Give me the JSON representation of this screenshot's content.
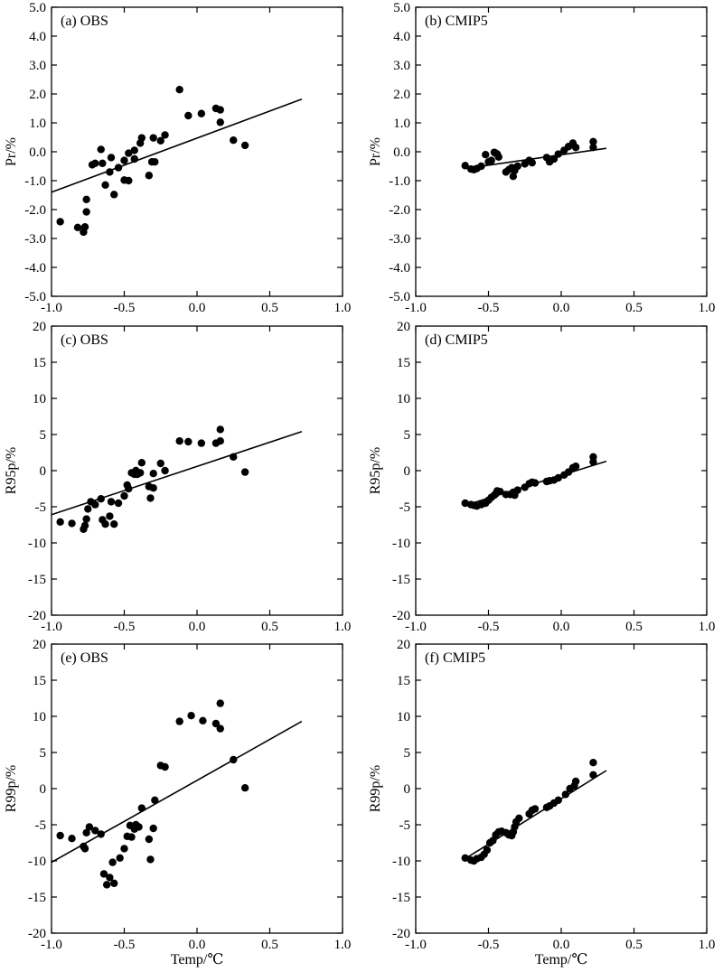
{
  "chart_data": [
    {
      "type": "scatter",
      "title": "(a) OBS",
      "xlabel": "",
      "ylabel": "Pr/%",
      "xlim": [
        -1.0,
        1.0
      ],
      "ylim": [
        -5.0,
        5.0
      ],
      "xticks": [
        "-1.0",
        "-0.5",
        "0.0",
        "0.5",
        "1.0"
      ],
      "yticks": [
        "-5.0",
        "-4.0",
        "-3.0",
        "-2.0",
        "-1.0",
        "0.0",
        "1.0",
        "2.0",
        "3.0",
        "4.0",
        "5.0"
      ],
      "grid": false,
      "points": [
        [
          -0.94,
          -2.42
        ],
        [
          -0.82,
          -2.62
        ],
        [
          -0.78,
          -2.78
        ],
        [
          -0.77,
          -2.6
        ],
        [
          -0.76,
          -2.08
        ],
        [
          -0.76,
          -1.65
        ],
        [
          -0.72,
          -0.45
        ],
        [
          -0.7,
          -0.4
        ],
        [
          -0.66,
          0.08
        ],
        [
          -0.65,
          -0.4
        ],
        [
          -0.63,
          -1.15
        ],
        [
          -0.6,
          -0.7
        ],
        [
          -0.59,
          -0.2
        ],
        [
          -0.57,
          -1.48
        ],
        [
          -0.54,
          -0.55
        ],
        [
          -0.5,
          -0.98
        ],
        [
          -0.5,
          -0.3
        ],
        [
          -0.47,
          -1.0
        ],
        [
          -0.47,
          -0.05
        ],
        [
          -0.43,
          0.05
        ],
        [
          -0.43,
          -0.25
        ],
        [
          -0.39,
          0.3
        ],
        [
          -0.38,
          0.48
        ],
        [
          -0.33,
          -0.82
        ],
        [
          -0.31,
          -0.35
        ],
        [
          -0.3,
          0.48
        ],
        [
          -0.29,
          -0.35
        ],
        [
          -0.25,
          0.38
        ],
        [
          -0.22,
          0.58
        ],
        [
          -0.12,
          2.15
        ],
        [
          -0.06,
          1.25
        ],
        [
          0.03,
          1.32
        ],
        [
          0.13,
          1.5
        ],
        [
          0.16,
          1.45
        ],
        [
          0.16,
          1.02
        ],
        [
          0.25,
          0.4
        ],
        [
          0.33,
          0.22
        ]
      ],
      "fit": [
        [
          -1.0,
          -1.4
        ],
        [
          0.72,
          1.82
        ]
      ]
    },
    {
      "type": "scatter",
      "title": "(b) CMIP5",
      "xlabel": "",
      "ylabel": "Pr/%",
      "xlim": [
        -1.0,
        1.0
      ],
      "ylim": [
        -5.0,
        5.0
      ],
      "xticks": [
        "-1.0",
        "-0.5",
        "0.0",
        "0.5",
        "1.0"
      ],
      "yticks": [
        "-5.0",
        "-4.0",
        "-3.0",
        "-2.0",
        "-1.0",
        "0.0",
        "1.0",
        "2.0",
        "3.0",
        "4.0",
        "5.0"
      ],
      "grid": false,
      "points": [
        [
          -0.66,
          -0.48
        ],
        [
          -0.62,
          -0.6
        ],
        [
          -0.6,
          -0.62
        ],
        [
          -0.58,
          -0.58
        ],
        [
          -0.55,
          -0.5
        ],
        [
          -0.52,
          -0.1
        ],
        [
          -0.5,
          -0.35
        ],
        [
          -0.48,
          -0.3
        ],
        [
          -0.46,
          -0.02
        ],
        [
          -0.45,
          -0.05
        ],
        [
          -0.44,
          -0.08
        ],
        [
          -0.43,
          -0.18
        ],
        [
          -0.38,
          -0.7
        ],
        [
          -0.36,
          -0.62
        ],
        [
          -0.34,
          -0.55
        ],
        [
          -0.33,
          -0.85
        ],
        [
          -0.32,
          -0.65
        ],
        [
          -0.3,
          -0.5
        ],
        [
          -0.25,
          -0.42
        ],
        [
          -0.22,
          -0.3
        ],
        [
          -0.2,
          -0.38
        ],
        [
          -0.1,
          -0.2
        ],
        [
          -0.08,
          -0.35
        ],
        [
          -0.05,
          -0.25
        ],
        [
          -0.02,
          -0.08
        ],
        [
          0.02,
          0.05
        ],
        [
          0.05,
          0.18
        ],
        [
          0.08,
          0.3
        ],
        [
          0.1,
          0.15
        ],
        [
          0.22,
          0.35
        ],
        [
          0.22,
          0.15
        ]
      ],
      "fit": [
        [
          -0.66,
          -0.58
        ],
        [
          0.31,
          0.12
        ]
      ]
    },
    {
      "type": "scatter",
      "title": "(c) OBS",
      "xlabel": "",
      "ylabel": "R95p/%",
      "xlim": [
        -1.0,
        1.0
      ],
      "ylim": [
        -20,
        20
      ],
      "xticks": [
        "-1.0",
        "-0.5",
        "0.0",
        "0.5",
        "1.0"
      ],
      "yticks": [
        "-20",
        "-15",
        "-10",
        "-5",
        "0",
        "5",
        "10",
        "15",
        "20"
      ],
      "grid": false,
      "points": [
        [
          -0.94,
          -7.1
        ],
        [
          -0.86,
          -7.3
        ],
        [
          -0.78,
          -8.1
        ],
        [
          -0.77,
          -7.6
        ],
        [
          -0.76,
          -6.7
        ],
        [
          -0.75,
          -5.3
        ],
        [
          -0.73,
          -4.3
        ],
        [
          -0.7,
          -4.7
        ],
        [
          -0.66,
          -3.9
        ],
        [
          -0.65,
          -6.8
        ],
        [
          -0.63,
          -7.4
        ],
        [
          -0.6,
          -6.3
        ],
        [
          -0.59,
          -4.3
        ],
        [
          -0.57,
          -7.4
        ],
        [
          -0.54,
          -4.5
        ],
        [
          -0.5,
          -3.5
        ],
        [
          -0.48,
          -2.0
        ],
        [
          -0.47,
          -2.5
        ],
        [
          -0.45,
          -0.3
        ],
        [
          -0.43,
          -0.5
        ],
        [
          -0.42,
          0.0
        ],
        [
          -0.41,
          -0.5
        ],
        [
          -0.39,
          -0.3
        ],
        [
          -0.38,
          1.1
        ],
        [
          -0.33,
          -2.2
        ],
        [
          -0.32,
          -3.8
        ],
        [
          -0.3,
          -2.4
        ],
        [
          -0.3,
          -0.4
        ],
        [
          -0.25,
          1.0
        ],
        [
          -0.22,
          0.0
        ],
        [
          -0.12,
          4.1
        ],
        [
          -0.06,
          4.0
        ],
        [
          0.03,
          3.8
        ],
        [
          0.13,
          3.8
        ],
        [
          0.16,
          5.7
        ],
        [
          0.16,
          4.1
        ],
        [
          0.25,
          1.9
        ],
        [
          0.33,
          -0.2
        ]
      ],
      "fit": [
        [
          -1.0,
          -6.1
        ],
        [
          0.72,
          5.4
        ]
      ]
    },
    {
      "type": "scatter",
      "title": "(d) CMIP5",
      "xlabel": "",
      "ylabel": "R95p/%",
      "xlim": [
        -1.0,
        1.0
      ],
      "ylim": [
        -20,
        20
      ],
      "xticks": [
        "-1.0",
        "-0.5",
        "0.0",
        "0.5",
        "1.0"
      ],
      "yticks": [
        "-20",
        "-15",
        "-10",
        "-5",
        "0",
        "5",
        "10",
        "15",
        "20"
      ],
      "grid": false,
      "points": [
        [
          -0.66,
          -4.5
        ],
        [
          -0.62,
          -4.7
        ],
        [
          -0.6,
          -4.8
        ],
        [
          -0.58,
          -4.9
        ],
        [
          -0.55,
          -4.7
        ],
        [
          -0.52,
          -4.5
        ],
        [
          -0.5,
          -4.1
        ],
        [
          -0.48,
          -3.7
        ],
        [
          -0.46,
          -3.4
        ],
        [
          -0.45,
          -3.2
        ],
        [
          -0.44,
          -2.8
        ],
        [
          -0.42,
          -2.9
        ],
        [
          -0.38,
          -3.3
        ],
        [
          -0.35,
          -3.3
        ],
        [
          -0.33,
          -3.0
        ],
        [
          -0.32,
          -3.4
        ],
        [
          -0.3,
          -2.7
        ],
        [
          -0.25,
          -2.3
        ],
        [
          -0.22,
          -1.8
        ],
        [
          -0.2,
          -1.6
        ],
        [
          -0.18,
          -1.7
        ],
        [
          -0.1,
          -1.5
        ],
        [
          -0.08,
          -1.4
        ],
        [
          -0.05,
          -1.3
        ],
        [
          -0.02,
          -1.0
        ],
        [
          0.02,
          -0.6
        ],
        [
          0.05,
          -0.2
        ],
        [
          0.08,
          0.4
        ],
        [
          0.1,
          0.6
        ],
        [
          0.22,
          1.9
        ],
        [
          0.22,
          1.2
        ]
      ],
      "fit": [
        [
          -0.66,
          -4.8
        ],
        [
          0.31,
          1.3
        ]
      ]
    },
    {
      "type": "scatter",
      "title": "(e) OBS",
      "xlabel": "Temp/℃",
      "ylabel": "R99p/%",
      "xlim": [
        -1.0,
        1.0
      ],
      "ylim": [
        -20,
        20
      ],
      "xticks": [
        "-1.0",
        "-0.5",
        "0.0",
        "0.5",
        "1.0"
      ],
      "yticks": [
        "-20",
        "-15",
        "-10",
        "-5",
        "0",
        "5",
        "10",
        "15",
        "20"
      ],
      "grid": false,
      "points": [
        [
          -0.94,
          -6.5
        ],
        [
          -0.86,
          -6.9
        ],
        [
          -0.78,
          -8.0
        ],
        [
          -0.77,
          -8.3
        ],
        [
          -0.76,
          -6.1
        ],
        [
          -0.74,
          -5.3
        ],
        [
          -0.7,
          -5.8
        ],
        [
          -0.66,
          -6.3
        ],
        [
          -0.64,
          -11.8
        ],
        [
          -0.62,
          -13.3
        ],
        [
          -0.6,
          -12.3
        ],
        [
          -0.58,
          -10.2
        ],
        [
          -0.57,
          -13.1
        ],
        [
          -0.53,
          -9.6
        ],
        [
          -0.5,
          -8.3
        ],
        [
          -0.48,
          -6.6
        ],
        [
          -0.46,
          -5.1
        ],
        [
          -0.45,
          -6.7
        ],
        [
          -0.43,
          -5.6
        ],
        [
          -0.42,
          -5.0
        ],
        [
          -0.4,
          -5.3
        ],
        [
          -0.38,
          -2.7
        ],
        [
          -0.33,
          -7.0
        ],
        [
          -0.32,
          -9.8
        ],
        [
          -0.3,
          -5.5
        ],
        [
          -0.29,
          -1.6
        ],
        [
          -0.25,
          3.2
        ],
        [
          -0.22,
          3.0
        ],
        [
          -0.12,
          9.3
        ],
        [
          -0.04,
          10.1
        ],
        [
          0.04,
          9.4
        ],
        [
          0.13,
          9.0
        ],
        [
          0.16,
          11.8
        ],
        [
          0.16,
          8.3
        ],
        [
          0.25,
          4.0
        ],
        [
          0.33,
          0.1
        ]
      ],
      "fit": [
        [
          -1.0,
          -10.2
        ],
        [
          0.72,
          9.3
        ]
      ]
    },
    {
      "type": "scatter",
      "title": "(f) CMIP5",
      "xlabel": "Temp/℃",
      "ylabel": "R99p/%",
      "xlim": [
        -1.0,
        1.0
      ],
      "ylim": [
        -20,
        20
      ],
      "xticks": [
        "-1.0",
        "-0.5",
        "0.0",
        "0.5",
        "1.0"
      ],
      "yticks": [
        "-20",
        "-15",
        "-10",
        "-5",
        "0",
        "5",
        "10",
        "15",
        "20"
      ],
      "grid": false,
      "points": [
        [
          -0.66,
          -9.6
        ],
        [
          -0.62,
          -9.9
        ],
        [
          -0.6,
          -10.0
        ],
        [
          -0.58,
          -9.7
        ],
        [
          -0.55,
          -9.5
        ],
        [
          -0.53,
          -9.1
        ],
        [
          -0.51,
          -8.5
        ],
        [
          -0.49,
          -7.5
        ],
        [
          -0.47,
          -7.2
        ],
        [
          -0.45,
          -6.4
        ],
        [
          -0.43,
          -6.0
        ],
        [
          -0.41,
          -5.9
        ],
        [
          -0.38,
          -6.1
        ],
        [
          -0.36,
          -6.4
        ],
        [
          -0.34,
          -6.5
        ],
        [
          -0.33,
          -6.0
        ],
        [
          -0.32,
          -5.3
        ],
        [
          -0.31,
          -4.6
        ],
        [
          -0.29,
          -4.1
        ],
        [
          -0.22,
          -3.5
        ],
        [
          -0.2,
          -3.0
        ],
        [
          -0.18,
          -2.8
        ],
        [
          -0.1,
          -2.6
        ],
        [
          -0.08,
          -2.4
        ],
        [
          -0.05,
          -2.0
        ],
        [
          -0.02,
          -1.6
        ],
        [
          0.03,
          -0.8
        ],
        [
          0.06,
          0.0
        ],
        [
          0.09,
          0.4
        ],
        [
          0.1,
          1.0
        ],
        [
          0.22,
          3.6
        ],
        [
          0.22,
          1.9
        ]
      ],
      "fit": [
        [
          -0.66,
          -9.7
        ],
        [
          0.31,
          2.5
        ]
      ]
    }
  ]
}
